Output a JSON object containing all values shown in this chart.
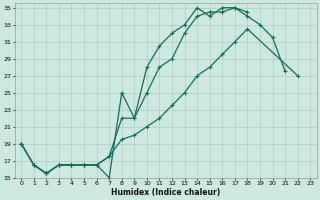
{
  "xlabel": "Humidex (Indice chaleur)",
  "bg_color": "#cde8e0",
  "grid_color": "#aacfc6",
  "line_color": "#1a6b5a",
  "xlim": [
    -0.5,
    23.5
  ],
  "ylim": [
    15,
    35.5
  ],
  "xticks": [
    0,
    1,
    2,
    3,
    4,
    5,
    6,
    7,
    8,
    9,
    10,
    11,
    12,
    13,
    14,
    15,
    16,
    17,
    18,
    19,
    20,
    21,
    22,
    23
  ],
  "yticks": [
    15,
    17,
    19,
    21,
    23,
    25,
    27,
    29,
    31,
    33,
    35
  ],
  "series": [
    {
      "x": [
        0,
        1,
        2,
        3,
        4,
        5,
        6,
        7,
        8,
        9,
        10,
        11,
        12,
        13,
        14,
        15,
        16,
        17,
        18,
        19,
        20,
        21
      ],
      "y": [
        19,
        16.5,
        15.5,
        16.5,
        16.5,
        16.5,
        16.5,
        15,
        25,
        22,
        28,
        30.5,
        32,
        33,
        35,
        34,
        35,
        35,
        34,
        33,
        31.5,
        27.5
      ]
    },
    {
      "x": [
        0,
        1,
        2,
        3,
        4,
        5,
        6,
        7,
        8,
        9,
        10,
        11,
        12,
        13,
        14,
        15,
        16,
        17,
        18
      ],
      "y": [
        19,
        16.5,
        15.5,
        16.5,
        16.5,
        16.5,
        16.5,
        17.5,
        22,
        22,
        25,
        28,
        29,
        32,
        34,
        34.5,
        34.5,
        35,
        34.5
      ]
    },
    {
      "x": [
        0,
        1,
        2,
        3,
        4,
        5,
        6,
        7,
        8,
        9,
        10,
        11,
        12,
        13,
        14,
        15,
        16,
        17,
        18,
        22
      ],
      "y": [
        19,
        16.5,
        15.5,
        16.5,
        16.5,
        16.5,
        16.5,
        17.5,
        19.5,
        20,
        21,
        22,
        23.5,
        25,
        27,
        28,
        29.5,
        31,
        32.5,
        27
      ]
    }
  ]
}
